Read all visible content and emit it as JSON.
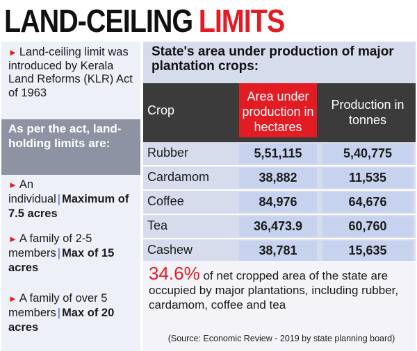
{
  "headline": {
    "part1": "LAND-CEILING",
    "part2": "LIMITS"
  },
  "sidebar": {
    "intro": "Land-ceiling limit was introduced by Kerala Land Reforms (KLR) Act of 1963",
    "act_note": "As per the act, land-holding limits are:",
    "limits": [
      {
        "who": "An individual",
        "limit": "Maximum of 7.5 acres"
      },
      {
        "who": "A family of 2-5 members",
        "limit": "Max of 15 acres"
      },
      {
        "who": "A family of over 5 members",
        "limit": "Max of 20 acres"
      }
    ]
  },
  "panel": {
    "title": "State's area under production of major plantation crops:",
    "columns": {
      "crop": "Crop",
      "area": "Area under production in hectares",
      "production": "Production in tonnes"
    },
    "rows": [
      {
        "crop": "Rubber",
        "area": "5,51,115",
        "production": "5,40,775"
      },
      {
        "crop": "Cardamom",
        "area": "38,882",
        "production": "11,535"
      },
      {
        "crop": "Coffee",
        "area": "84,976",
        "production": "64,676"
      },
      {
        "crop": "Tea",
        "area": "36,473.9",
        "production": "60,760"
      },
      {
        "crop": "Cashew",
        "area": "38,781",
        "production": "15,635"
      }
    ],
    "summary_pct": "34.6%",
    "summary_text": "of net cropped area of the state are occupied by major plantations, including rubber, cardamom, coffee and tea",
    "source": "(Source: Economic Review - 2019 by state planning board)"
  },
  "colors": {
    "accent_red": "#e31b23",
    "header_dark": "#3b3b3b",
    "panel_bg": "#d7dcec",
    "cell_bg": "#c7d2ee",
    "band_grey": "#8d93a2"
  }
}
